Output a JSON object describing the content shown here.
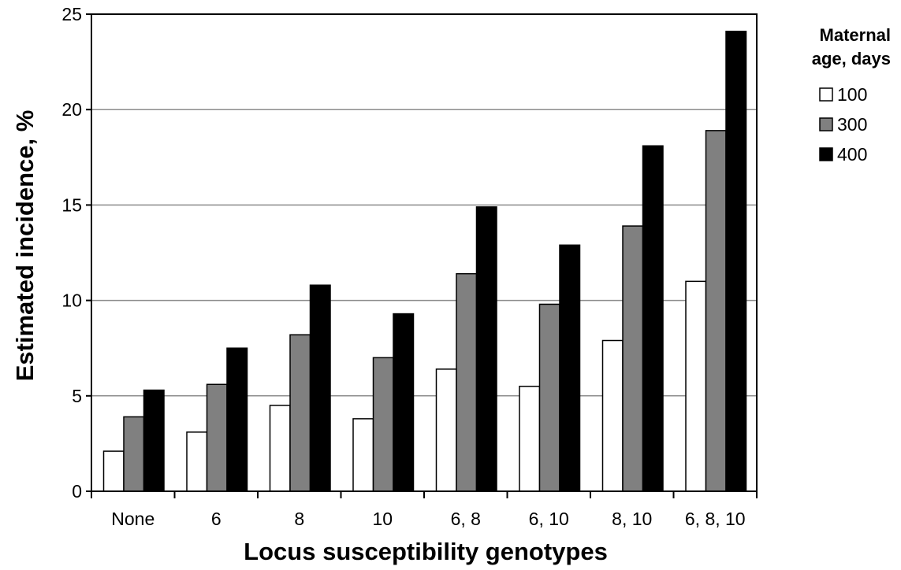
{
  "chart_data": {
    "type": "bar",
    "title": "",
    "xlabel": "Locus susceptibility genotypes",
    "ylabel": "Estimated incidence, %",
    "ylim": [
      0,
      25
    ],
    "yticks": [
      0,
      5,
      10,
      15,
      20,
      25
    ],
    "grid": "horizontal",
    "legend_position": "right",
    "legend_title_lines": [
      "Maternal",
      "age, days"
    ],
    "categories": [
      "None",
      "6",
      "8",
      "10",
      "6, 8",
      "6, 10",
      "8, 10",
      "6, 8, 10"
    ],
    "series": [
      {
        "name": "100",
        "color": "#ffffff",
        "values": [
          2.1,
          3.1,
          4.5,
          3.8,
          6.4,
          5.5,
          7.9,
          11.0
        ]
      },
      {
        "name": "300",
        "color": "#808080",
        "values": [
          3.9,
          5.6,
          8.2,
          7.0,
          11.4,
          9.8,
          13.9,
          18.9
        ]
      },
      {
        "name": "400",
        "color": "#000000",
        "values": [
          5.3,
          7.5,
          10.8,
          9.3,
          14.9,
          12.9,
          18.1,
          24.1
        ]
      }
    ]
  }
}
